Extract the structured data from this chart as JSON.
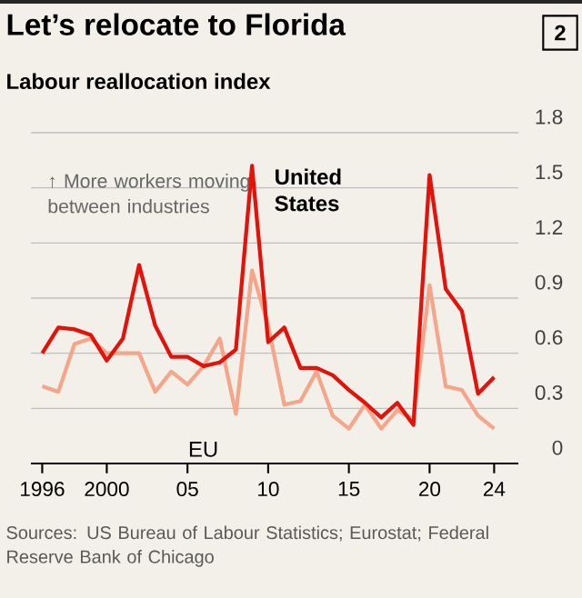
{
  "chart_data": {
    "type": "line",
    "title": "Let’s relocate to Florida",
    "subtitle": "Labour reallocation index",
    "annotations": [
      "2",
      "↑ More workers moving between industries",
      "Sources: US Bureau of Labour Statistics; Eurostat; Federal Reserve Bank of Chicago"
    ],
    "x": [
      1996,
      1997,
      1998,
      1999,
      2000,
      2001,
      2002,
      2003,
      2004,
      2005,
      2006,
      2007,
      2008,
      2009,
      2010,
      2011,
      2012,
      2013,
      2014,
      2015,
      2016,
      2017,
      2018,
      2019,
      2020,
      2021,
      2022,
      2023,
      2024
    ],
    "series": [
      {
        "name": "EU",
        "color": "#f4a58a",
        "values": [
          0.42,
          0.39,
          0.65,
          0.68,
          0.6,
          0.6,
          0.6,
          0.39,
          0.5,
          0.43,
          0.53,
          0.68,
          0.27,
          1.05,
          0.75,
          0.32,
          0.34,
          0.5,
          0.26,
          0.19,
          0.32,
          0.19,
          0.29,
          0.24,
          0.97,
          0.42,
          0.4,
          0.26,
          0.19
        ]
      },
      {
        "name": "United States",
        "color": "#e3120b",
        "values": [
          0.6,
          0.74,
          0.73,
          0.7,
          0.56,
          0.68,
          1.08,
          0.75,
          0.58,
          0.58,
          0.53,
          0.55,
          0.62,
          1.62,
          0.66,
          0.74,
          0.52,
          0.52,
          0.48,
          0.4,
          0.33,
          0.25,
          0.33,
          0.21,
          1.57,
          0.95,
          0.83,
          0.38,
          0.47
        ]
      }
    ],
    "xlim": [
      1995.3,
      2025.5
    ],
    "ylim": [
      0,
      1.8
    ],
    "xticks": [
      1996,
      2000,
      {
        "value": 2005,
        "label": "05"
      },
      {
        "value": 2010,
        "label": "10"
      },
      {
        "value": 2015,
        "label": "15"
      },
      {
        "value": 2020,
        "label": "20"
      },
      {
        "value": 2024,
        "label": "24"
      }
    ],
    "yticks": [
      0,
      0.3,
      0.6,
      0.9,
      1.2,
      1.5,
      1.8
    ],
    "grid": "y",
    "line_style": "solid",
    "marker": "none"
  }
}
